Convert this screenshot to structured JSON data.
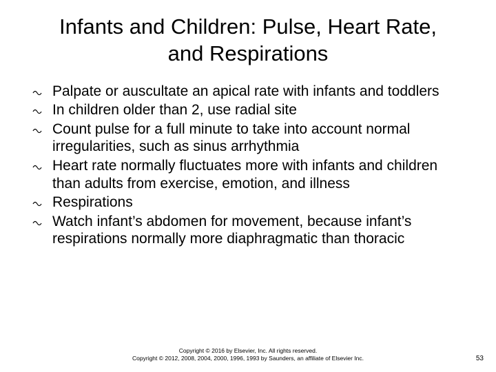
{
  "title": "Infants and Children: Pulse, Heart Rate, and Respirations",
  "bullets": [
    "Palpate or auscultate an apical rate with infants and toddlers",
    "In children older than 2, use radial site",
    "Count pulse for a full minute to take into account normal irregularities, such as sinus arrhythmia",
    "Heart rate normally fluctuates more with infants and children than adults from exercise, emotion, and illness",
    "Respirations",
    "Watch infant’s abdomen for movement, because infant’s respirations normally more diaphragmatic than thoracic"
  ],
  "copyright_line1": "Copyright © 2016 by Elsevier, Inc. All rights reserved.",
  "copyright_line2": "Copyright © 2012, 2008, 2004, 2000, 1996, 1993 by Saunders, an affiliate of Elsevier Inc.",
  "page_number": "53",
  "colors": {
    "background": "#ffffff",
    "text": "#000000",
    "bullet_stroke": "#000000"
  }
}
